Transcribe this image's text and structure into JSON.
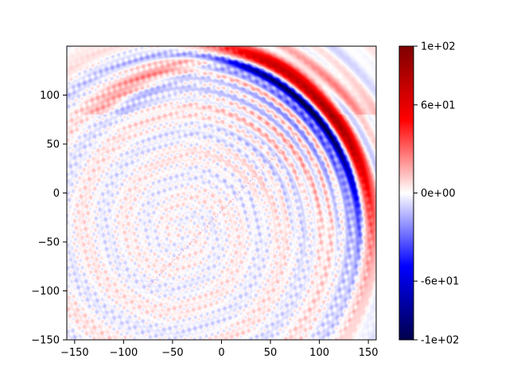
{
  "chart_data": {
    "type": "heatmap",
    "title": "",
    "xlabel": "",
    "ylabel": "",
    "xlim": [
      -158,
      158
    ],
    "ylim": [
      -150,
      150
    ],
    "xticks": [
      {
        "value": -150,
        "label": "−150"
      },
      {
        "value": -100,
        "label": "−100"
      },
      {
        "value": -50,
        "label": "−50"
      },
      {
        "value": 0,
        "label": "0"
      },
      {
        "value": 50,
        "label": "50"
      },
      {
        "value": 100,
        "label": "100"
      },
      {
        "value": 150,
        "label": "150"
      }
    ],
    "yticks": [
      {
        "value": -150,
        "label": "−150"
      },
      {
        "value": -100,
        "label": "−100"
      },
      {
        "value": -50,
        "label": "−50"
      },
      {
        "value": 0,
        "label": "0"
      },
      {
        "value": 50,
        "label": "50"
      },
      {
        "value": 100,
        "label": "100"
      }
    ],
    "colormap": "seismic",
    "colormap_stops": [
      "#00004c",
      "#0000ff",
      "#ffffff",
      "#ff0000",
      "#7f0000"
    ],
    "color_range": [
      -100,
      100
    ],
    "colorbar": {
      "ticks": [
        {
          "value": 100,
          "label": "1e+02"
        },
        {
          "value": 60,
          "label": "6e+01"
        },
        {
          "value": 0,
          "label": "0e+00"
        },
        {
          "value": -60,
          "label": "-6e+01"
        },
        {
          "value": -100,
          "label": "-1e+02"
        }
      ]
    },
    "field_features": {
      "wavefront_center": [
        -40,
        -40
      ],
      "wavefront_peak_point": [
        95,
        85
      ],
      "wavefront_peak_value": -95,
      "trailing_positive_peak_value": 90,
      "diagonal_line": {
        "from": [
          -75,
          -95
        ],
        "to": [
          80,
          65
        ]
      }
    }
  }
}
